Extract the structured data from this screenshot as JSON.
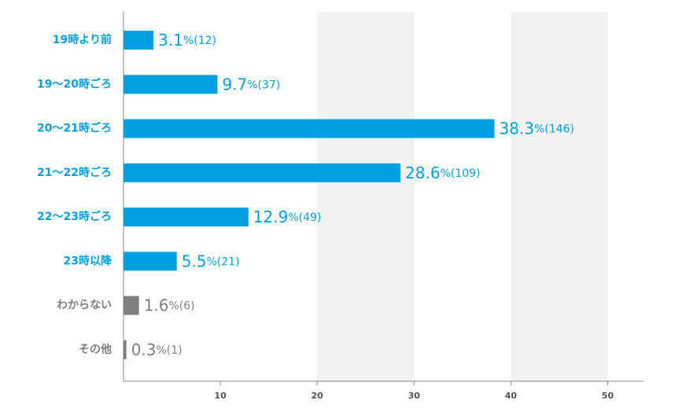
{
  "chart_data": {
    "type": "hbar",
    "categories": [
      "19時より前",
      "19～20時ごろ",
      "20～21時ごろ",
      "21～22時ごろ",
      "22～23時ごろ",
      "23時以降",
      "わからない",
      "その他"
    ],
    "values": [
      3.1,
      9.7,
      38.3,
      28.6,
      12.9,
      5.5,
      1.6,
      0.3
    ],
    "value_labels": [
      "3.1%(12)",
      "9.7%(37)",
      "38.3%(146)",
      "28.6%(109)",
      "12.9%(49)",
      "5.5%(21)",
      "1.6%(6)",
      "0.3%(1)"
    ],
    "colors": [
      "#009fe3",
      "#009fe3",
      "#009fe3",
      "#009fe3",
      "#009fe3",
      "#009fe3",
      "#7f7f7f",
      "#7f7f7f"
    ],
    "xlim": [
      0,
      53.7
    ],
    "xticks": [
      10,
      20,
      30,
      40,
      50
    ],
    "grid": "bands"
  }
}
